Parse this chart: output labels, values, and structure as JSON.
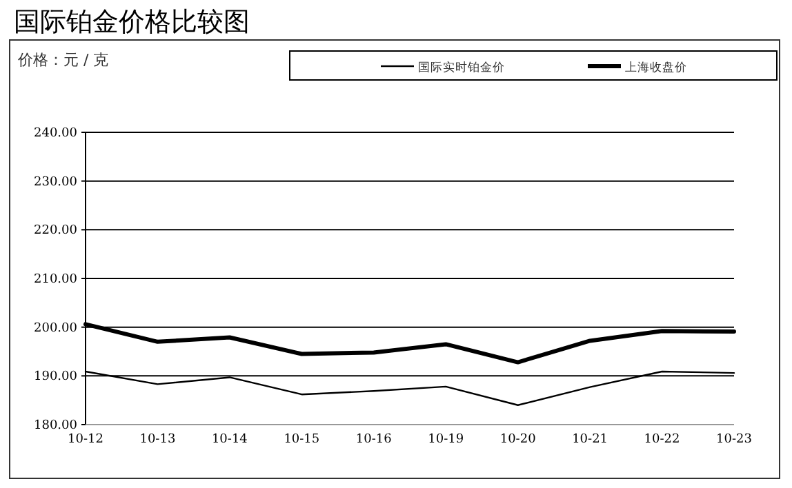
{
  "chart_data": {
    "type": "line",
    "title": "国际铂金价格比较图",
    "ylabel": "价格：元 / 克",
    "categories": [
      "10-12",
      "10-13",
      "10-14",
      "10-15",
      "10-16",
      "10-19",
      "10-20",
      "10-21",
      "10-22",
      "10-23"
    ],
    "series": [
      {
        "name": "国际实时铂金价",
        "color": "#000000",
        "values": [
          190.9,
          188.3,
          189.7,
          186.2,
          186.9,
          187.8,
          184.0,
          187.7,
          190.9,
          190.6
        ]
      },
      {
        "name": "上海收盘价",
        "color": "#000000",
        "values": [
          200.6,
          197.0,
          197.9,
          194.5,
          194.8,
          196.5,
          192.8,
          197.2,
          199.2,
          199.1
        ]
      }
    ],
    "ylim": [
      180,
      240
    ],
    "yticks": [
      {
        "value": 180,
        "label": "180.00"
      },
      {
        "value": 190,
        "label": "190.00"
      },
      {
        "value": 200,
        "label": "200.00"
      },
      {
        "value": 210,
        "label": "210.00"
      },
      {
        "value": 220,
        "label": "220.00"
      },
      {
        "value": 230,
        "label": "230.00"
      },
      {
        "value": 240,
        "label": "240.00"
      }
    ],
    "grid": "y",
    "legend": "top",
    "marker": "none",
    "line_style": "solid"
  }
}
